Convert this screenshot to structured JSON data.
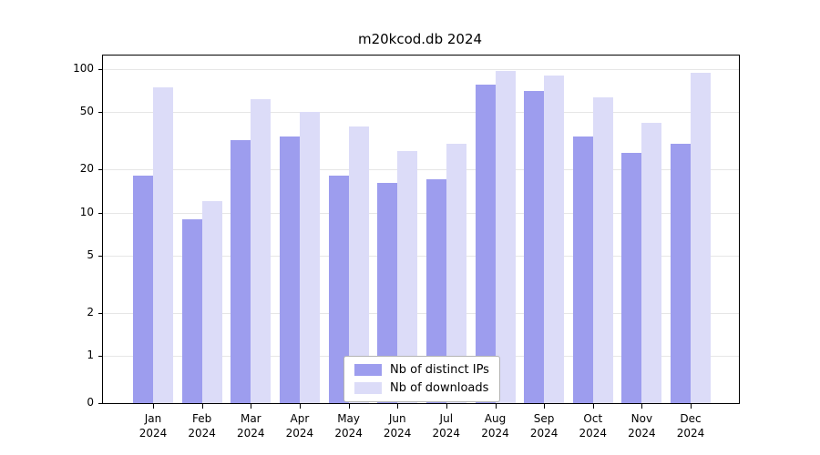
{
  "chart_data": {
    "type": "bar",
    "title": "m20kcod.db 2024",
    "categories": [
      "Jan",
      "Feb",
      "Mar",
      "Apr",
      "May",
      "Jun",
      "Jul",
      "Aug",
      "Sep",
      "Oct",
      "Nov",
      "Dec"
    ],
    "x_tick_label_line2": "2024",
    "series": [
      {
        "name": "Nb of distinct IPs",
        "color": "#9d9dee",
        "values": [
          18,
          9,
          32,
          34,
          18,
          16,
          17,
          78,
          70,
          34,
          26,
          30
        ]
      },
      {
        "name": "Nb of downloads",
        "color": "#dcdcf8",
        "values": [
          75,
          12,
          62,
          50,
          40,
          27,
          30,
          97,
          90,
          64,
          42,
          94
        ]
      }
    ],
    "y_scale": "log",
    "y_ticks": [
      0,
      1,
      2,
      5,
      10,
      20,
      50,
      100
    ],
    "ylim": [
      0,
      110
    ],
    "grid": true,
    "legend_position": "bottom-center",
    "colors": {
      "background": "#ffffff",
      "gridline": "#e6e6e6",
      "axis": "#000000"
    }
  }
}
